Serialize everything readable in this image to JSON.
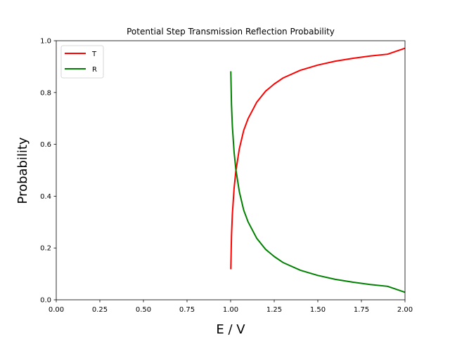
{
  "chart_data": {
    "type": "line",
    "title": "Potential Step Transmission Reflection Probability",
    "xlabel": "E / V",
    "ylabel": "Probability",
    "xlim": [
      0.0,
      2.0
    ],
    "ylim": [
      0.0,
      1.0
    ],
    "xticks": [
      "0.00",
      "0.25",
      "0.50",
      "0.75",
      "1.00",
      "1.25",
      "1.50",
      "1.75",
      "2.00"
    ],
    "yticks": [
      "0.0",
      "0.2",
      "0.4",
      "0.6",
      "0.8",
      "1.0"
    ],
    "xtick_values": [
      0.0,
      0.25,
      0.5,
      0.75,
      1.0,
      1.25,
      1.5,
      1.75,
      2.0
    ],
    "ytick_values": [
      0.0,
      0.2,
      0.4,
      0.6,
      0.8,
      1.0
    ],
    "grid": false,
    "legend_position": "upper-left",
    "series": [
      {
        "name": "T",
        "color": "#ff0000",
        "x": [
          1.001,
          1.005,
          1.01,
          1.02,
          1.03,
          1.05,
          1.075,
          1.1,
          1.15,
          1.2,
          1.25,
          1.3,
          1.4,
          1.5,
          1.6,
          1.7,
          1.8,
          1.9,
          2.0
        ],
        "y": [
          0.118,
          0.248,
          0.331,
          0.431,
          0.497,
          0.583,
          0.654,
          0.699,
          0.763,
          0.805,
          0.833,
          0.856,
          0.886,
          0.906,
          0.921,
          0.932,
          0.941,
          0.948,
          0.971
        ]
      },
      {
        "name": "R",
        "color": "#008000",
        "x": [
          1.001,
          1.005,
          1.01,
          1.02,
          1.03,
          1.05,
          1.075,
          1.1,
          1.15,
          1.2,
          1.25,
          1.3,
          1.4,
          1.5,
          1.6,
          1.7,
          1.8,
          1.9,
          2.0
        ],
        "y": [
          0.882,
          0.752,
          0.669,
          0.569,
          0.503,
          0.417,
          0.346,
          0.301,
          0.237,
          0.195,
          0.167,
          0.144,
          0.114,
          0.094,
          0.079,
          0.068,
          0.059,
          0.052,
          0.029
        ]
      }
    ]
  }
}
